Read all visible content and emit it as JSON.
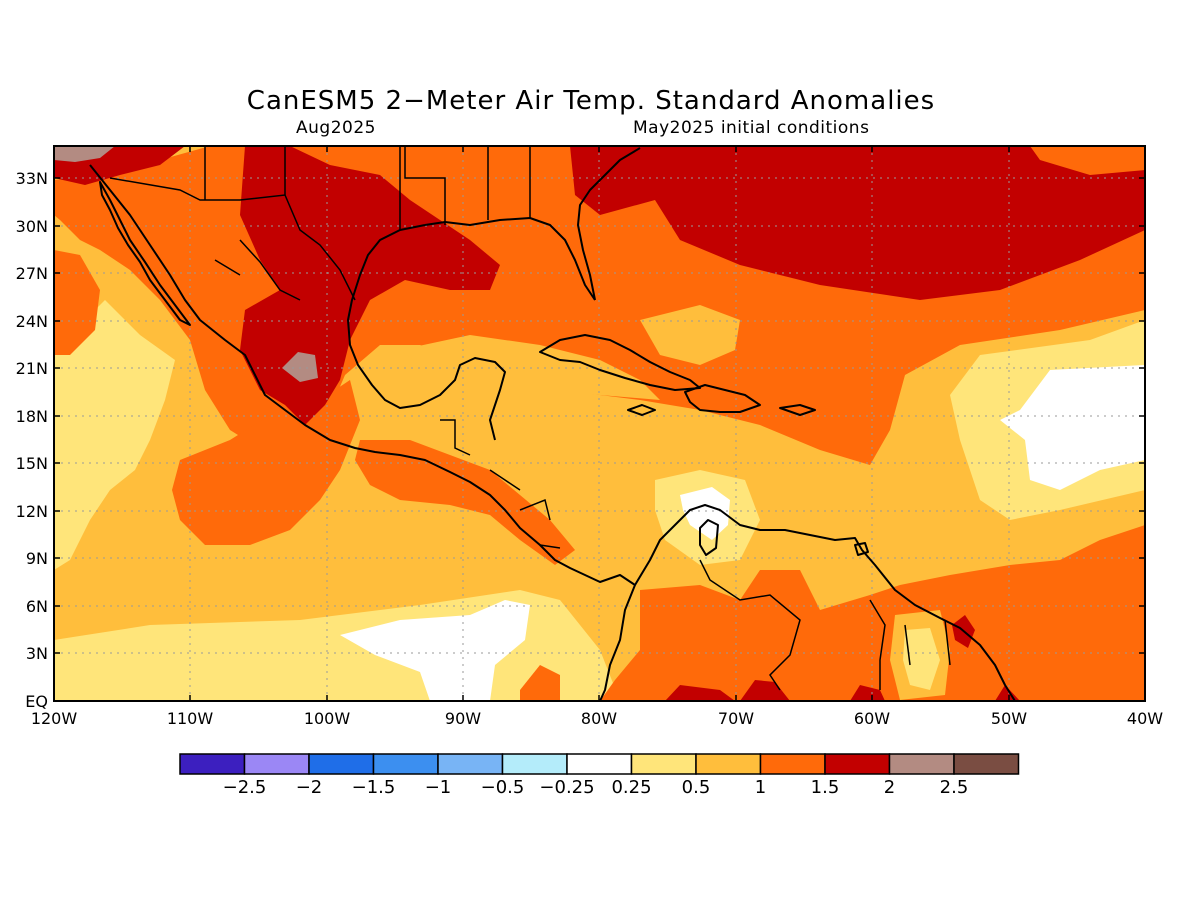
{
  "title": "CanESM5 2−Meter Air Temp. Standard Anomalies",
  "subtitle_left": "Aug2025",
  "subtitle_right": "May2025 initial conditions",
  "lat_ticks": [
    "33N",
    "30N",
    "27N",
    "24N",
    "21N",
    "18N",
    "15N",
    "12N",
    "9N",
    "6N",
    "3N",
    "EQ"
  ],
  "lon_ticks": [
    "120W",
    "110W",
    "100W",
    "90W",
    "80W",
    "70W",
    "60W",
    "50W",
    "40W"
  ],
  "colorbar": {
    "colors": [
      "#3c1fbf",
      "#9b87f5",
      "#1f6ee8",
      "#3c8ff0",
      "#78b4f5",
      "#b4ecfa",
      "#ffffff",
      "#ffe57a",
      "#ffbe3c",
      "#ff6a0a",
      "#c20000",
      "#b38b82",
      "#7a4d42"
    ],
    "labels": [
      "−2.5",
      "−2",
      "−1.5",
      "−1",
      "−0.5",
      "−0.25",
      "0.25",
      "0.5",
      "1",
      "1.5",
      "2",
      "2.5"
    ]
  },
  "chart_data": {
    "type": "heatmap",
    "variable": "2-Meter Air Temp. Standard Anomalies",
    "model": "CanESM5",
    "valid": "Aug2025",
    "initial_conditions": "May2025",
    "lon_range": [
      "120W",
      "40W"
    ],
    "lat_range": [
      "EQ",
      "35N"
    ],
    "contour_levels": [
      -2.5,
      -2,
      -1.5,
      -1,
      -0.5,
      -0.25,
      0.25,
      0.5,
      1,
      1.5,
      2,
      2.5
    ],
    "grid": true
  }
}
